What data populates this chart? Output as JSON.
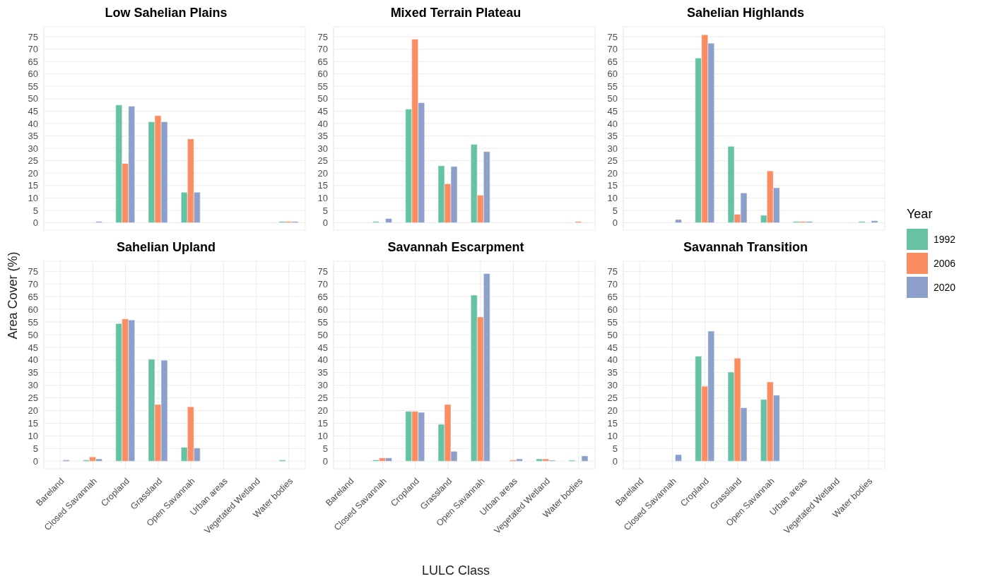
{
  "chart_data": [
    {
      "type": "bar",
      "title": "Low Sahelian Plains",
      "ylabel": "Area Cover (%)",
      "legend": "right",
      "legend_title": "Year",
      "categories": [
        null,
        null,
        null,
        null,
        null,
        null,
        null,
        null
      ],
      "ylim": [
        -3,
        79
      ],
      "yticks": [
        0,
        5,
        10,
        15,
        20,
        25,
        30,
        35,
        40,
        45,
        50,
        55,
        60,
        65,
        70,
        75
      ],
      "grid": true,
      "tick_labels": "y",
      "series": [
        {
          "name": "1992",
          "color": "#66c2a5",
          "values": [
            null,
            null,
            47.5,
            40.7,
            12.3,
            null,
            null,
            0.5
          ]
        },
        {
          "name": "2006",
          "color": "#fc8d62",
          "values": [
            null,
            null,
            23.9,
            43.2,
            33.8,
            null,
            null,
            0.5
          ]
        },
        {
          "name": "2020",
          "color": "#8da0cb",
          "values": [
            null,
            0.5,
            47.0,
            40.7,
            12.3,
            null,
            null,
            0.5
          ]
        }
      ]
    },
    {
      "type": "bar",
      "title": "Mixed Terrain Plateau",
      "categories": [
        null,
        null,
        null,
        null,
        null,
        null,
        null,
        null
      ],
      "ylim": [
        -3,
        79
      ],
      "yticks": [
        0,
        5,
        10,
        15,
        20,
        25,
        30,
        35,
        40,
        45,
        50,
        55,
        60,
        65,
        70,
        75
      ],
      "grid": true,
      "tick_labels": "y",
      "series": [
        {
          "name": "1992",
          "color": "#66c2a5",
          "values": [
            null,
            0.5,
            45.8,
            23.0,
            31.6,
            null,
            null,
            null
          ]
        },
        {
          "name": "2006",
          "color": "#fc8d62",
          "values": [
            null,
            null,
            74.0,
            15.7,
            11.1,
            null,
            null,
            0.5
          ]
        },
        {
          "name": "2020",
          "color": "#8da0cb",
          "values": [
            null,
            1.7,
            48.4,
            22.7,
            28.7,
            null,
            null,
            null
          ]
        }
      ]
    },
    {
      "type": "bar",
      "title": "Sahelian Highlands",
      "categories": [
        null,
        null,
        null,
        null,
        null,
        null,
        null,
        null
      ],
      "ylim": [
        -3,
        79
      ],
      "yticks": [
        0,
        5,
        10,
        15,
        20,
        25,
        30,
        35,
        40,
        45,
        50,
        55,
        60,
        65,
        70,
        75
      ],
      "grid": true,
      "tick_labels": "y",
      "series": [
        {
          "name": "1992",
          "color": "#66c2a5",
          "values": [
            null,
            null,
            66.4,
            30.8,
            3.0,
            0.5,
            null,
            0.5
          ]
        },
        {
          "name": "2006",
          "color": "#fc8d62",
          "values": [
            null,
            null,
            75.8,
            3.4,
            20.9,
            0.5,
            null,
            null
          ]
        },
        {
          "name": "2020",
          "color": "#8da0cb",
          "values": [
            null,
            1.3,
            72.4,
            12.0,
            14.1,
            0.5,
            null,
            0.8
          ]
        }
      ]
    },
    {
      "type": "bar",
      "title": "Sahelian Upland",
      "categories": [
        "Bareland",
        "Closed Savannah",
        "Cropland",
        "Grassland",
        "Open Savannah",
        "Urban areas",
        "Vegetated Wetland",
        "Water bodies"
      ],
      "ylim": [
        -3,
        79
      ],
      "yticks": [
        0,
        5,
        10,
        15,
        20,
        25,
        30,
        35,
        40,
        45,
        50,
        55,
        60,
        65,
        70,
        75
      ],
      "grid": true,
      "series": [
        {
          "name": "1992",
          "color": "#66c2a5",
          "values": [
            null,
            0.5,
            54.4,
            40.3,
            5.5,
            null,
            null,
            0.5
          ]
        },
        {
          "name": "2006",
          "color": "#fc8d62",
          "values": [
            null,
            1.7,
            56.2,
            22.4,
            21.5,
            null,
            null,
            null
          ]
        },
        {
          "name": "2020",
          "color": "#8da0cb",
          "values": [
            0.5,
            0.9,
            55.8,
            39.9,
            5.2,
            null,
            null,
            null
          ]
        }
      ]
    },
    {
      "type": "bar",
      "title": "Savannah Escarpment",
      "xlabel": "LULC Class",
      "categories": [
        "Bareland",
        "Closed Savannah",
        "Cropland",
        "Grassland",
        "Open Savannah",
        "Urban areas",
        "Vegetated Wetland",
        "Water bodies"
      ],
      "ylim": [
        -3,
        79
      ],
      "yticks": [
        0,
        5,
        10,
        15,
        20,
        25,
        30,
        35,
        40,
        45,
        50,
        55,
        60,
        65,
        70,
        75
      ],
      "grid": true,
      "series": [
        {
          "name": "1992",
          "color": "#66c2a5",
          "values": [
            null,
            0.5,
            19.7,
            14.6,
            65.6,
            null,
            0.9,
            0.4
          ]
        },
        {
          "name": "2006",
          "color": "#fc8d62",
          "values": [
            null,
            1.3,
            19.7,
            22.4,
            57.0,
            0.5,
            0.9,
            null
          ]
        },
        {
          "name": "2020",
          "color": "#8da0cb",
          "values": [
            null,
            1.3,
            19.3,
            3.9,
            74.1,
            0.9,
            0.4,
            2.1
          ]
        }
      ]
    },
    {
      "type": "bar",
      "title": "Savannah Transition",
      "categories": [
        "Bareland",
        "Closed Savannah",
        "Cropland",
        "Grassland",
        "Open Savannah",
        "Urban areas",
        "Vegetated Wetland",
        "Water bodies"
      ],
      "ylim": [
        -3,
        79
      ],
      "yticks": [
        0,
        5,
        10,
        15,
        20,
        25,
        30,
        35,
        40,
        45,
        50,
        55,
        60,
        65,
        70,
        75
      ],
      "grid": true,
      "series": [
        {
          "name": "1992",
          "color": "#66c2a5",
          "values": [
            null,
            null,
            41.5,
            35.2,
            24.4,
            null,
            null,
            null
          ]
        },
        {
          "name": "2006",
          "color": "#fc8d62",
          "values": [
            null,
            null,
            29.6,
            40.7,
            31.3,
            null,
            null,
            null
          ]
        },
        {
          "name": "2020",
          "color": "#8da0cb",
          "values": [
            null,
            2.6,
            51.4,
            21.1,
            26.1,
            null,
            null,
            null
          ]
        }
      ]
    }
  ]
}
